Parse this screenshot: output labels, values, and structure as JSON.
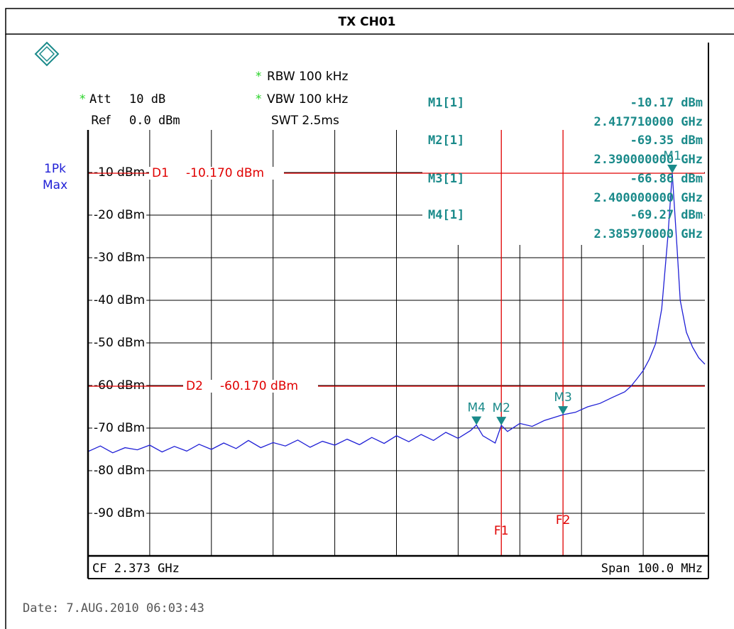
{
  "chart_data": {
    "type": "line",
    "title": "TX CH01",
    "settings": {
      "att": "Att",
      "att_value": "10 dB",
      "ref": "Ref",
      "ref_value": "0.0 dBm",
      "rbw": "RBW 100 kHz",
      "vbw": "VBW 100 kHz",
      "swt": "SWT 2.5ms",
      "trace_mode": [
        "1Pk",
        "Max"
      ],
      "star": "*"
    },
    "xlim": [
      2.323,
      2.423
    ],
    "ylim": [
      -100,
      0
    ],
    "yticks": [
      {
        "value": -10,
        "label": "-10 dBm"
      },
      {
        "value": -20,
        "label": "-20 dBm"
      },
      {
        "value": -30,
        "label": "-30 dBm"
      },
      {
        "value": -40,
        "label": "-40 dBm"
      },
      {
        "value": -50,
        "label": "-50 dBm"
      },
      {
        "value": -60,
        "label": "-60 dBm"
      },
      {
        "value": -70,
        "label": "-70 dBm"
      },
      {
        "value": -80,
        "label": "-80 dBm"
      },
      {
        "value": -90,
        "label": "-90 dBm"
      }
    ],
    "grid": true,
    "center_label": "CF 2.373 GHz",
    "span_label": "Span 100.0 MHz",
    "date": "Date: 7.AUG.2010  06:03:43",
    "series": [
      {
        "name": "1Pk Max",
        "color": "#1f1fd6",
        "x": [
          2.323,
          2.325,
          2.327,
          2.329,
          2.331,
          2.333,
          2.335,
          2.337,
          2.339,
          2.341,
          2.343,
          2.345,
          2.347,
          2.349,
          2.351,
          2.353,
          2.355,
          2.357,
          2.359,
          2.361,
          2.363,
          2.365,
          2.367,
          2.369,
          2.371,
          2.373,
          2.375,
          2.377,
          2.379,
          2.381,
          2.383,
          2.385,
          2.38597,
          2.387,
          2.389,
          2.39,
          2.391,
          2.393,
          2.395,
          2.397,
          2.4,
          2.402,
          2.404,
          2.406,
          2.408,
          2.41,
          2.411,
          2.412,
          2.413,
          2.414,
          2.415,
          2.416,
          2.417,
          2.41771,
          2.4185,
          2.419,
          2.42,
          2.421,
          2.422,
          2.423
        ],
        "values": [
          -75.5,
          -74.2,
          -75.8,
          -74.6,
          -75.1,
          -74.0,
          -75.6,
          -74.3,
          -75.4,
          -73.8,
          -75.0,
          -73.5,
          -74.8,
          -72.9,
          -74.6,
          -73.4,
          -74.2,
          -72.8,
          -74.5,
          -73.1,
          -74.0,
          -72.6,
          -73.9,
          -72.2,
          -73.6,
          -71.8,
          -73.2,
          -71.5,
          -72.9,
          -71.0,
          -72.4,
          -70.6,
          -69.27,
          -71.8,
          -73.5,
          -69.35,
          -70.8,
          -68.9,
          -69.6,
          -68.2,
          -66.86,
          -66.3,
          -65.0,
          -64.2,
          -62.8,
          -61.5,
          -60.2,
          -58.4,
          -56.5,
          -53.8,
          -50.2,
          -42.0,
          -25.0,
          -10.17,
          -28.0,
          -40.0,
          -47.5,
          -51.0,
          -53.5,
          -55.0
        ]
      }
    ],
    "display_lines": [
      {
        "name": "D1",
        "value": -10.17,
        "label": "-10.170 dBm"
      },
      {
        "name": "D2",
        "value": -60.17,
        "label": "-60.170 dBm"
      }
    ],
    "frequency_lines": [
      {
        "name": "F1",
        "value": 2.39
      },
      {
        "name": "F2",
        "value": 2.4
      }
    ],
    "markers": [
      {
        "name": "M1[1]",
        "label": "M1",
        "level": -10.17,
        "level_label": "-10.17 dBm",
        "freq": 2.41771,
        "freq_label": "2.417710000 GHz"
      },
      {
        "name": "M2[1]",
        "label": "M2",
        "level": -69.35,
        "level_label": "-69.35 dBm",
        "freq": 2.39,
        "freq_label": "2.390000000 GHz"
      },
      {
        "name": "M3[1]",
        "label": "M3",
        "level": -66.86,
        "level_label": "-66.86 dBm",
        "freq": 2.4,
        "freq_label": "2.400000000 GHz"
      },
      {
        "name": "M4[1]",
        "label": "M4",
        "level": -69.27,
        "level_label": "-69.27 dBm",
        "freq": 2.38597,
        "freq_label": "2.385970000 GHz"
      }
    ]
  }
}
